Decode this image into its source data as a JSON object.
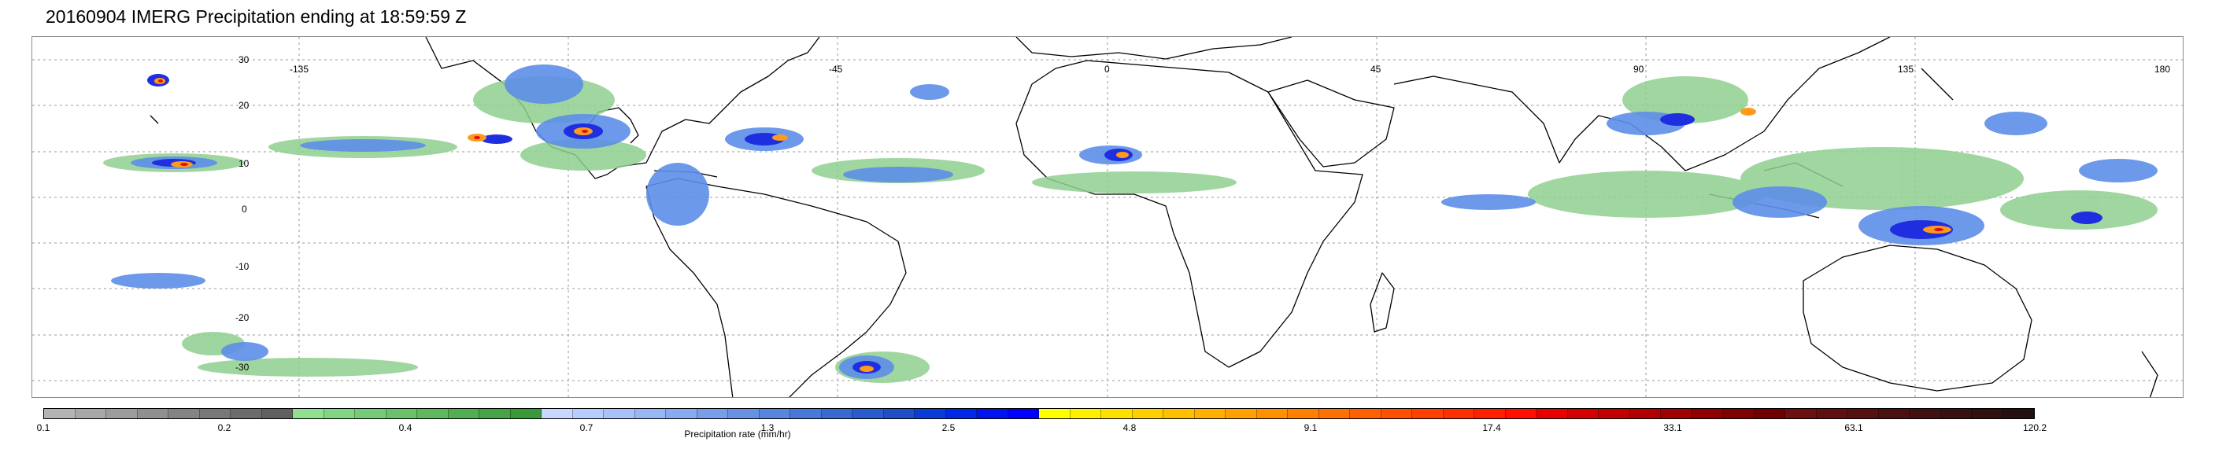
{
  "title": "20160904 IMERG Precipitation ending at 18:59:59 Z",
  "map": {
    "lon_labels": [
      "-135",
      "-45",
      "0",
      "45",
      "90",
      "135",
      "180"
    ],
    "lat_labels": [
      "30",
      "20",
      "10",
      "0",
      "-10",
      "-20",
      "-30"
    ]
  },
  "colorbar": {
    "label": "Precipitation rate (mm/hr)",
    "ticks": [
      "0.1",
      "0.2",
      "0.4",
      "0.7",
      "1.3",
      "2.5",
      "4.8",
      "9.1",
      "17.4",
      "33.1",
      "63.1",
      "120.2"
    ],
    "colors": [
      "#b4b4b4",
      "#a8a8a8",
      "#9c9c9c",
      "#909090",
      "#848484",
      "#787878",
      "#6c6c6c",
      "#606060",
      "#8fe08f",
      "#82d682",
      "#76cc76",
      "#6ac26a",
      "#5eb85e",
      "#52ae52",
      "#46a446",
      "#3a9a3a",
      "#c8d7ff",
      "#b8cdff",
      "#a8c2fb",
      "#98b7f5",
      "#88aaf0",
      "#789eea",
      "#6891e4",
      "#5885de",
      "#4878d8",
      "#386ad2",
      "#285ccc",
      "#1e4ec8",
      "#0a3cd8",
      "#0028e6",
      "#0014f0",
      "#0000ff",
      "#ffff00",
      "#fff000",
      "#ffe000",
      "#ffd000",
      "#ffc000",
      "#ffb000",
      "#ffa000",
      "#ff9000",
      "#ff8000",
      "#ff7000",
      "#ff6000",
      "#ff5000",
      "#ff4000",
      "#ff3000",
      "#ff2000",
      "#ff1000",
      "#e60000",
      "#d40000",
      "#c20000",
      "#b00000",
      "#a00000",
      "#900000",
      "#800000",
      "#700000",
      "#6a1010",
      "#601010",
      "#561010",
      "#4c1010",
      "#421010",
      "#381010",
      "#2e1010",
      "#241010"
    ]
  }
}
